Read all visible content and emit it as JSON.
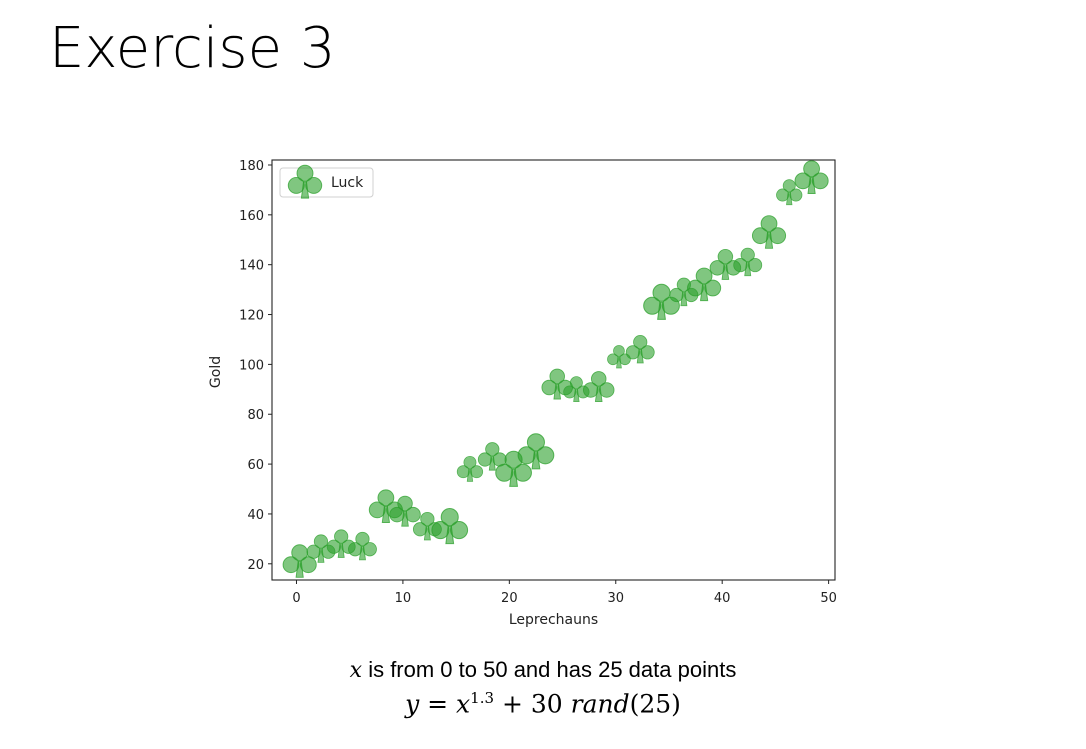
{
  "slide": {
    "title": "Exercise 3",
    "caption_line1_var": "x",
    "caption_line1_rest": " is from 0 to 50 and has 25 data points",
    "caption_line2": {
      "lhs": "y",
      "eq": " = ",
      "base": "x",
      "exp": "1.3",
      "plus": " + ",
      "coef": "30 ",
      "fn": "rand",
      "arg": "(25)"
    }
  },
  "chart_data": {
    "type": "scatter",
    "title": "",
    "xlabel": "Leprechauns",
    "ylabel": "Gold",
    "xlim": [
      -2.3,
      50.6
    ],
    "ylim": [
      13.5,
      182
    ],
    "xticks": [
      0,
      10,
      20,
      30,
      40,
      50
    ],
    "yticks": [
      20,
      40,
      60,
      80,
      100,
      120,
      140,
      160,
      180
    ],
    "grid": false,
    "legend": {
      "position": "upper left",
      "entries": [
        "Luck"
      ]
    },
    "marker": "club (♣)",
    "color": "#2ca02c",
    "alpha": 0.6,
    "series": [
      {
        "name": "Luck",
        "x": [
          0.3,
          2.3,
          4.2,
          6.2,
          8.4,
          10.2,
          12.3,
          14.4,
          16.3,
          18.4,
          20.4,
          22.5,
          24.5,
          26.3,
          28.4,
          30.3,
          32.3,
          34.3,
          36.4,
          38.3,
          40.3,
          42.4,
          44.4,
          46.3,
          48.4
        ],
        "y": [
          21,
          26,
          28,
          27,
          43,
          41,
          35,
          35,
          58,
          63,
          58,
          65,
          92,
          90,
          91,
          103,
          106,
          125,
          129,
          132,
          140,
          141,
          153,
          169,
          175
        ],
        "sizes": [
          26,
          22,
          22,
          22,
          26,
          24,
          22,
          28,
          20,
          22,
          28,
          28,
          24,
          20,
          24,
          18,
          22,
          28,
          22,
          26,
          24,
          22,
          26,
          20,
          26
        ]
      }
    ]
  }
}
